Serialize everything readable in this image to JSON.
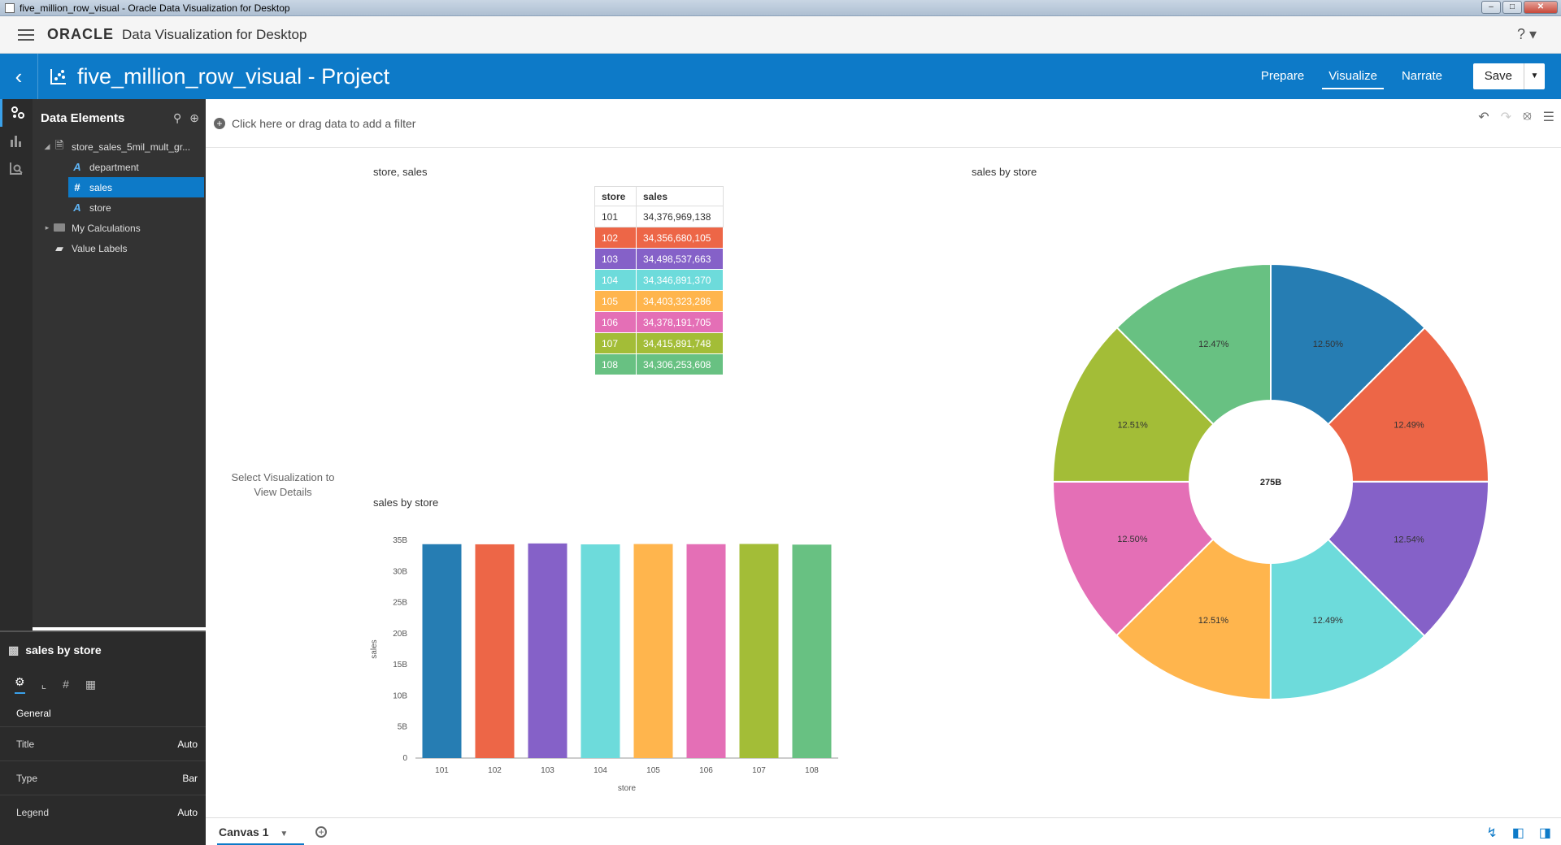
{
  "window": {
    "title": "five_million_row_visual - Oracle Data Visualization for Desktop",
    "min": "–",
    "max": "□",
    "close": "✕"
  },
  "header": {
    "oracle_logo": "ORACLE",
    "app_name": "Data Visualization for Desktop",
    "help": "? ▾"
  },
  "project": {
    "back": "‹",
    "title": "five_million_row_visual - Project",
    "tabs": [
      "Prepare",
      "Visualize",
      "Narrate"
    ],
    "active_tab": "Visualize",
    "save": "Save",
    "save_caret": "▼"
  },
  "data_panel": {
    "title": "Data Elements",
    "dataset": "store_sales_5mil_mult_gr...",
    "columns": [
      {
        "name": "department",
        "icon": "text-attribute-icon",
        "glyph": "A"
      },
      {
        "name": "sales",
        "icon": "measure-hash-icon",
        "glyph": "#",
        "selected": true
      },
      {
        "name": "store",
        "icon": "text-attribute-icon",
        "glyph": "A"
      }
    ],
    "my_calculations": "My Calculations",
    "value_labels": "Value Labels"
  },
  "properties": {
    "title": "sales by store",
    "section": "General",
    "rows": [
      {
        "label": "Title",
        "value": "Auto"
      },
      {
        "label": "Type",
        "value": "Bar"
      },
      {
        "label": "Legend",
        "value": "Auto"
      }
    ]
  },
  "filter": {
    "placeholder": "Click here or drag data to add a filter"
  },
  "canvas": {
    "details_hint": "Select Visualization to View Details",
    "tab_name": "Canvas 1"
  },
  "colors": {
    "accent": "#0d7ac8",
    "series": [
      "#267db3",
      "#ed6647",
      "#8561c8",
      "#6ddbdb",
      "#ffb54d",
      "#e46fb6",
      "#a3bd37",
      "#68c182"
    ]
  },
  "chart_data": [
    {
      "type": "table",
      "title": "store, sales",
      "columns": [
        "store",
        "sales"
      ],
      "rows": [
        [
          "101",
          "34,376,969,138"
        ],
        [
          "102",
          "34,356,680,105"
        ],
        [
          "103",
          "34,498,537,663"
        ],
        [
          "104",
          "34,346,891,370"
        ],
        [
          "105",
          "34,403,323,286"
        ],
        [
          "106",
          "34,378,191,705"
        ],
        [
          "107",
          "34,415,891,748"
        ],
        [
          "108",
          "34,306,253,608"
        ]
      ]
    },
    {
      "type": "bar",
      "title": "sales by store",
      "xlabel": "store",
      "ylabel": "sales",
      "categories": [
        "101",
        "102",
        "103",
        "104",
        "105",
        "106",
        "107",
        "108"
      ],
      "values": [
        34376969138,
        34356680105,
        34498537663,
        34346891370,
        34403323286,
        34378191705,
        34415891748,
        34306253608
      ],
      "ylim": [
        0,
        35000000000
      ],
      "yticks": [
        "0",
        "5B",
        "10B",
        "15B",
        "20B",
        "25B",
        "30B",
        "35B"
      ],
      "grid": false
    },
    {
      "type": "pie",
      "title": "sales by store",
      "donut": true,
      "center_label": "275B",
      "categories": [
        "101",
        "102",
        "103",
        "104",
        "105",
        "106",
        "107",
        "108"
      ],
      "values": [
        34376969138,
        34356680105,
        34498537663,
        34346891370,
        34403323286,
        34378191705,
        34415891748,
        34306253608
      ],
      "labels": [
        "12.50%",
        "12.49%",
        "12.54%",
        "12.49%",
        "12.51%",
        "12.50%",
        "12.51%",
        "12.47%"
      ]
    }
  ]
}
